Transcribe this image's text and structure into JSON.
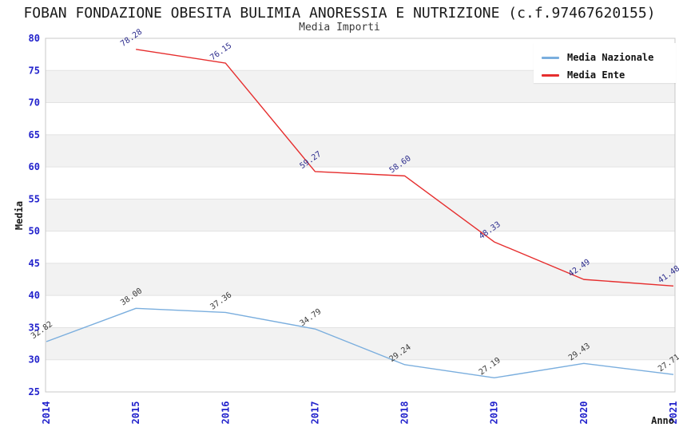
{
  "header": {
    "title": "FOBAN FONDAZIONE OBESITA BULIMIA ANORESSIA E NUTRIZIONE (c.f.97467620155)",
    "subtitle": "Media Importi"
  },
  "chart_data": {
    "type": "line",
    "title": "FOBAN FONDAZIONE OBESITA BULIMIA ANORESSIA E NUTRIZIONE (c.f.97467620155)",
    "subtitle": "Media Importi",
    "xlabel": "Anno",
    "ylabel": "Media",
    "x_categories": [
      2014,
      2015,
      2016,
      2017,
      2018,
      2019,
      2020,
      2021
    ],
    "ylim": [
      25,
      80
    ],
    "ytick_step": 5,
    "yticks": [
      25,
      30,
      35,
      40,
      45,
      50,
      55,
      60,
      65,
      70,
      75,
      80
    ],
    "grid": "alternating-horizontal-bands",
    "legend_position": "top-right",
    "value_label_decimals": 2,
    "series": [
      {
        "name": "Media Nazionale",
        "color": "#7aaede",
        "label_color": "#3a3a3a",
        "x": [
          2014,
          2015,
          2016,
          2017,
          2018,
          2019,
          2020,
          2021
        ],
        "values": [
          32.82,
          38.0,
          37.36,
          34.79,
          29.24,
          27.19,
          29.43,
          27.71
        ]
      },
      {
        "name": "Media Ente",
        "color": "#e62e2e",
        "label_color": "#2b2b8c",
        "x": [
          2015,
          2016,
          2017,
          2018,
          2019,
          2020,
          2021
        ],
        "values": [
          78.28,
          76.15,
          59.27,
          58.6,
          48.33,
          42.49,
          41.48
        ]
      }
    ],
    "colors": {
      "tick_label": "#2222cc",
      "axis_title": "#1a1a1a",
      "band_gray": "#f2f2f2",
      "band_white": "#ffffff",
      "grid_line": "#e2e2e2",
      "plot_border": "#c8c8c8",
      "legend_bg": "#ffffff"
    }
  }
}
